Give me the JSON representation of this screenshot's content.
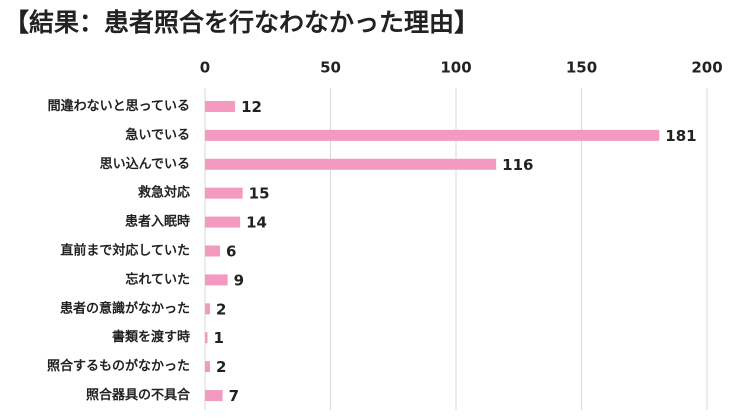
{
  "chart_data": {
    "type": "bar",
    "orientation": "horizontal",
    "title": "【結果：患者照合を行なわなかった理由】",
    "categories": [
      "間違わないと思っている",
      "急いでいる",
      "思い込んでいる",
      "救急対応",
      "患者入眠時",
      "直前まで対応していた",
      "忘れていた",
      "患者の意識がなかった",
      "書類を渡す時",
      "照合するものがなかった",
      "照合器具の不具合"
    ],
    "values": [
      12,
      181,
      116,
      15,
      14,
      6,
      9,
      2,
      1,
      2,
      7
    ],
    "color": "#f49ac1",
    "xlim": [
      0,
      200
    ],
    "xticks": [
      0,
      50,
      100,
      150,
      200
    ],
    "grid": true
  }
}
